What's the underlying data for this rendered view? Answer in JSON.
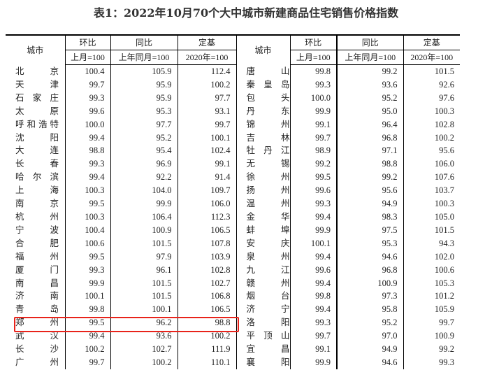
{
  "title": "表1：2022年10月70个大中城市新建商品住宅销售价格指数",
  "headers": {
    "city": "城市",
    "mom": "环比",
    "yoy": "同比",
    "base": "定基",
    "mom_sub": "上月=100",
    "yoy_sub": "上年同月=100",
    "base_sub": "2020年=100"
  },
  "highlight_color": "#e8231b",
  "highlighted_city": "郑州",
  "rows": [
    {
      "l": {
        "city": "北京",
        "mom": "100.4",
        "yoy": "105.9",
        "base": "112.4"
      },
      "r": {
        "city": "唐山",
        "mom": "99.8",
        "yoy": "99.2",
        "base": "101.5"
      }
    },
    {
      "l": {
        "city": "天津",
        "mom": "99.7",
        "yoy": "95.9",
        "base": "100.2"
      },
      "r": {
        "city": "秦皇岛",
        "mom": "99.3",
        "yoy": "93.6",
        "base": "92.6"
      }
    },
    {
      "l": {
        "city": "石家庄",
        "mom": "99.3",
        "yoy": "95.9",
        "base": "97.7"
      },
      "r": {
        "city": "包头",
        "mom": "100.0",
        "yoy": "95.2",
        "base": "97.6"
      }
    },
    {
      "l": {
        "city": "太原",
        "mom": "99.6",
        "yoy": "95.3",
        "base": "93.1"
      },
      "r": {
        "city": "丹东",
        "mom": "99.9",
        "yoy": "95.0",
        "base": "100.3"
      }
    },
    {
      "l": {
        "city": "呼和浩特",
        "mom": "100.0",
        "yoy": "97.7",
        "base": "99.7"
      },
      "r": {
        "city": "锦州",
        "mom": "99.1",
        "yoy": "96.4",
        "base": "102.8"
      }
    },
    {
      "l": {
        "city": "沈阳",
        "mom": "99.4",
        "yoy": "95.2",
        "base": "100.1"
      },
      "r": {
        "city": "吉林",
        "mom": "99.7",
        "yoy": "96.8",
        "base": "100.2"
      }
    },
    {
      "l": {
        "city": "大连",
        "mom": "98.8",
        "yoy": "95.4",
        "base": "102.4"
      },
      "r": {
        "city": "牡丹江",
        "mom": "98.9",
        "yoy": "97.1",
        "base": "95.6"
      }
    },
    {
      "l": {
        "city": "长春",
        "mom": "99.3",
        "yoy": "96.9",
        "base": "99.1"
      },
      "r": {
        "city": "无锡",
        "mom": "99.2",
        "yoy": "98.8",
        "base": "106.0"
      }
    },
    {
      "l": {
        "city": "哈尔滨",
        "mom": "99.4",
        "yoy": "92.2",
        "base": "91.4"
      },
      "r": {
        "city": "徐州",
        "mom": "99.5",
        "yoy": "99.2",
        "base": "107.6"
      }
    },
    {
      "l": {
        "city": "上海",
        "mom": "100.3",
        "yoy": "104.0",
        "base": "109.7"
      },
      "r": {
        "city": "扬州",
        "mom": "99.6",
        "yoy": "95.6",
        "base": "103.7"
      }
    },
    {
      "l": {
        "city": "南京",
        "mom": "99.5",
        "yoy": "99.9",
        "base": "106.0"
      },
      "r": {
        "city": "温州",
        "mom": "99.3",
        "yoy": "94.9",
        "base": "100.3"
      }
    },
    {
      "l": {
        "city": "杭州",
        "mom": "100.3",
        "yoy": "106.4",
        "base": "112.3"
      },
      "r": {
        "city": "金华",
        "mom": "99.4",
        "yoy": "98.3",
        "base": "105.0"
      }
    },
    {
      "l": {
        "city": "宁波",
        "mom": "100.4",
        "yoy": "100.9",
        "base": "106.5"
      },
      "r": {
        "city": "蚌埠",
        "mom": "99.9",
        "yoy": "97.5",
        "base": "101.5"
      }
    },
    {
      "l": {
        "city": "合肥",
        "mom": "100.6",
        "yoy": "101.5",
        "base": "107.8"
      },
      "r": {
        "city": "安庆",
        "mom": "100.1",
        "yoy": "95.3",
        "base": "94.3"
      }
    },
    {
      "l": {
        "city": "福州",
        "mom": "99.5",
        "yoy": "97.9",
        "base": "103.9"
      },
      "r": {
        "city": "泉州",
        "mom": "99.4",
        "yoy": "94.6",
        "base": "102.0"
      }
    },
    {
      "l": {
        "city": "厦门",
        "mom": "99.3",
        "yoy": "96.1",
        "base": "102.8"
      },
      "r": {
        "city": "九江",
        "mom": "99.6",
        "yoy": "96.8",
        "base": "100.6"
      }
    },
    {
      "l": {
        "city": "南昌",
        "mom": "99.9",
        "yoy": "101.5",
        "base": "102.7"
      },
      "r": {
        "city": "赣州",
        "mom": "99.4",
        "yoy": "100.9",
        "base": "105.3"
      }
    },
    {
      "l": {
        "city": "济南",
        "mom": "100.1",
        "yoy": "101.5",
        "base": "106.8"
      },
      "r": {
        "city": "烟台",
        "mom": "99.8",
        "yoy": "97.3",
        "base": "101.2"
      }
    },
    {
      "l": {
        "city": "青岛",
        "mom": "99.8",
        "yoy": "100.1",
        "base": "106.5"
      },
      "r": {
        "city": "济宁",
        "mom": "99.4",
        "yoy": "95.8",
        "base": "105.9"
      }
    },
    {
      "l": {
        "city": "郑州",
        "mom": "99.5",
        "yoy": "96.2",
        "base": "98.8"
      },
      "r": {
        "city": "洛阳",
        "mom": "99.3",
        "yoy": "95.2",
        "base": "99.7"
      }
    },
    {
      "l": {
        "city": "武汉",
        "mom": "99.4",
        "yoy": "93.6",
        "base": "100.2"
      },
      "r": {
        "city": "平顶山",
        "mom": "99.7",
        "yoy": "97.0",
        "base": "100.9"
      }
    },
    {
      "l": {
        "city": "长沙",
        "mom": "100.2",
        "yoy": "102.7",
        "base": "111.9"
      },
      "r": {
        "city": "宜昌",
        "mom": "99.1",
        "yoy": "94.9",
        "base": "99.2"
      }
    },
    {
      "l": {
        "city": "广州",
        "mom": "99.7",
        "yoy": "100.2",
        "base": "110.1"
      },
      "r": {
        "city": "襄阳",
        "mom": "99.9",
        "yoy": "94.6",
        "base": "99.3"
      }
    }
  ]
}
